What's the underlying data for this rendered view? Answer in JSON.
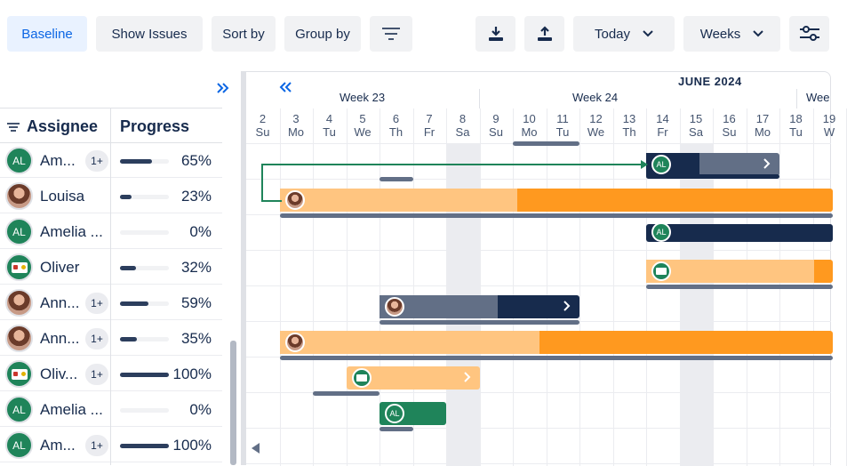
{
  "toolbar": {
    "baseline": "Baseline",
    "show_issues": "Show Issues",
    "sort_by": "Sort by",
    "group_by": "Group by",
    "filter_icon": "filter-icon",
    "download_icon": "download-icon",
    "upload_icon": "upload-icon",
    "today": "Today",
    "weeks": "Weeks",
    "settings_icon": "sliders-icon"
  },
  "table": {
    "expand_icon": "double-chevron-right-icon",
    "headers": {
      "assignee": "Assignee",
      "progress": "Progress"
    },
    "rows": [
      {
        "name": "Am...",
        "avatar": "initials",
        "initials": "AL",
        "badge": "1+",
        "progress_value": 0.65,
        "progress": "65%"
      },
      {
        "name": "Louisa",
        "avatar": "photo",
        "initials": "",
        "badge": "",
        "progress_value": 0.23,
        "progress": "23%"
      },
      {
        "name": "Amelia ...",
        "avatar": "initials",
        "initials": "AL",
        "badge": "",
        "progress_value": 0.0,
        "progress": "0%"
      },
      {
        "name": "Oliver",
        "avatar": "logo",
        "initials": "",
        "badge": "",
        "progress_value": 0.32,
        "progress": "32%"
      },
      {
        "name": "Ann...",
        "avatar": "photo",
        "initials": "",
        "badge": "1+",
        "progress_value": 0.59,
        "progress": "59%"
      },
      {
        "name": "Ann...",
        "avatar": "photo",
        "initials": "",
        "badge": "1+",
        "progress_value": 0.35,
        "progress": "35%"
      },
      {
        "name": "Oliv...",
        "avatar": "logo",
        "initials": "",
        "badge": "1+",
        "progress_value": 1.0,
        "progress": "100%"
      },
      {
        "name": "Amelia ...",
        "avatar": "initials",
        "initials": "AL",
        "badge": "",
        "progress_value": 0.0,
        "progress": "0%"
      },
      {
        "name": "Am...",
        "avatar": "initials",
        "initials": "AL",
        "badge": "1+",
        "progress_value": 1.0,
        "progress": "100%"
      }
    ]
  },
  "timeline": {
    "month": "JUNE 2024",
    "weeks": [
      "Week 23",
      "Week 24",
      "Wee"
    ],
    "days": [
      {
        "num": "2",
        "dow": "Su"
      },
      {
        "num": "3",
        "dow": "Mo"
      },
      {
        "num": "4",
        "dow": "Tu"
      },
      {
        "num": "5",
        "dow": "We"
      },
      {
        "num": "6",
        "dow": "Th"
      },
      {
        "num": "7",
        "dow": "Fr"
      },
      {
        "num": "8",
        "dow": "Sa"
      },
      {
        "num": "9",
        "dow": "Su"
      },
      {
        "num": "10",
        "dow": "Mo"
      },
      {
        "num": "11",
        "dow": "Tu"
      },
      {
        "num": "12",
        "dow": "We"
      },
      {
        "num": "13",
        "dow": "Th"
      },
      {
        "num": "14",
        "dow": "Fr"
      },
      {
        "num": "15",
        "dow": "Sa"
      },
      {
        "num": "16",
        "dow": "Su"
      },
      {
        "num": "17",
        "dow": "Mo"
      },
      {
        "num": "18",
        "dow": "Tu"
      },
      {
        "num": "19",
        "dow": "W"
      }
    ],
    "prev_icon": "double-chevron-left-icon",
    "scroll_left_icon": "caret-left-icon",
    "bar_initials": "AL",
    "colors": {
      "orange_dark": "#ff991f",
      "orange_light": "#ffc580",
      "navy": "#172b4d",
      "slate": "#626f86",
      "green": "#1f845a",
      "dependency": "#1f845a"
    }
  }
}
